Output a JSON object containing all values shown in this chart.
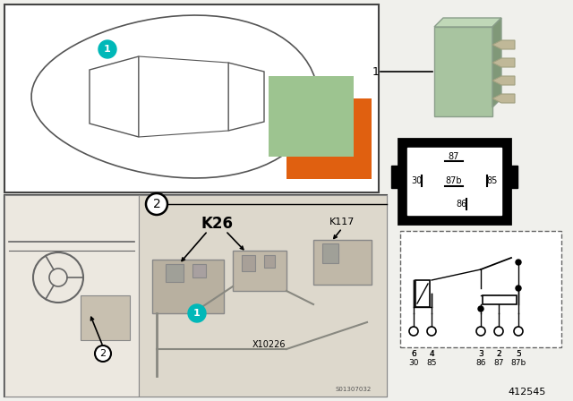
{
  "bg_color": "#f0f0ec",
  "teal": "#00b8b8",
  "orange_rect": "#e06010",
  "green_rect": "#9dc490",
  "relay_green": "#a8c4a0",
  "relay_green_top": "#c0d8b8",
  "relay_green_side": "#809878",
  "part_number": "412545",
  "K26": "K26",
  "K117": "K117",
  "X10226": "X10226",
  "S01307032": "S01307032",
  "pin_top_row": [
    "87"
  ],
  "pin_mid_left": "30",
  "pin_mid_center": "87b",
  "pin_mid_right": "85",
  "pin_bot_row": "86",
  "circ_pins_top": [
    "6",
    "4",
    "3",
    "2",
    "5"
  ],
  "circ_pins_bot": [
    "30",
    "85",
    "86",
    "87",
    "87b"
  ]
}
